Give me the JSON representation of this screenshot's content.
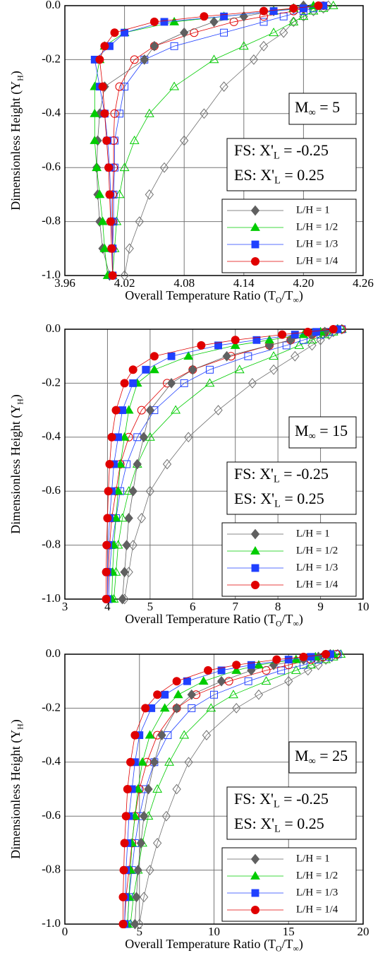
{
  "chart_data": [
    {
      "type": "line",
      "x_label": [
        "Overall Temperature Ratio (T",
        "O",
        "/T",
        "∞",
        ")"
      ],
      "y_label": [
        "Dimensionless Height (Y",
        "H",
        ")"
      ],
      "annotations": [
        [
          "M",
          "∞",
          " = 5"
        ],
        [
          "FS: X'",
          "L",
          " = -0.25"
        ],
        [
          "ES: X'",
          "L",
          " =  0.25"
        ]
      ],
      "xlim": [
        3.96,
        4.26
      ],
      "xticks": [
        3.96,
        4.02,
        4.08,
        4.14,
        {
          "value": 4.2,
          "label": "4.20"
        },
        4.26
      ],
      "ylim": [
        -1,
        0
      ],
      "yticks": [
        {
          "value": -1,
          "label": "-1.0"
        },
        -0.8,
        -0.6,
        -0.4,
        -0.2,
        {
          "value": 0,
          "label": "0.0"
        }
      ],
      "grid": true,
      "y": [
        0,
        -0.01,
        -0.02,
        -0.04,
        -0.06,
        -0.1,
        -0.15,
        -0.2,
        -0.3,
        -0.4,
        -0.5,
        -0.6,
        -0.7,
        -0.8,
        -0.9,
        -1.0
      ],
      "series": [
        {
          "color": "#707070",
          "marker": "diamond",
          "filled": false,
          "x": [
            4.225,
            4.22,
            4.21,
            4.2,
            4.19,
            4.18,
            4.16,
            4.15,
            4.12,
            4.1,
            4.08,
            4.06,
            4.045,
            4.035,
            4.025,
            4.02
          ]
        },
        {
          "color": "#00cc00",
          "marker": "triangle",
          "filled": false,
          "x": [
            4.23,
            4.22,
            4.21,
            4.2,
            4.19,
            4.17,
            4.14,
            4.11,
            4.07,
            4.045,
            4.03,
            4.02,
            4.015,
            4.012,
            4.01,
            4.008
          ]
        },
        {
          "color": "#2040ff",
          "marker": "square",
          "filled": false,
          "x": [
            4.22,
            4.21,
            4.2,
            4.18,
            4.16,
            4.12,
            4.07,
            4.04,
            4.02,
            4.015,
            4.01,
            4.01,
            4.009,
            4.009,
            4.008,
            4.008
          ]
        },
        {
          "color": "#e00000",
          "marker": "circle",
          "filled": false,
          "x": [
            4.22,
            4.2,
            4.19,
            4.16,
            4.13,
            4.09,
            4.05,
            4.03,
            4.015,
            4.01,
            4.009,
            4.009,
            4.008,
            4.008,
            4.008,
            4.008
          ]
        },
        {
          "name": "L/H = 1",
          "color": "#606060",
          "marker": "diamond",
          "filled": true,
          "x": [
            4.2,
            4.19,
            4.17,
            4.14,
            4.11,
            4.08,
            4.05,
            4.04,
            4.0,
            3.995,
            3.993,
            3.992,
            3.993,
            3.995,
            3.998,
            4.005
          ]
        },
        {
          "name": "L/H = 1/2",
          "color": "#00cc00",
          "marker": "triangle",
          "filled": true,
          "x": [
            4.21,
            4.19,
            4.17,
            4.12,
            4.07,
            4.02,
            4.0,
            3.995,
            3.99,
            3.99,
            3.99,
            3.992,
            3.995,
            3.998,
            4.0,
            4.003
          ]
        },
        {
          "name": "L/H = 1/3",
          "color": "#2040ff",
          "marker": "square",
          "filled": true,
          "x": [
            4.22,
            4.2,
            4.17,
            4.12,
            4.06,
            4.02,
            4.005,
            3.99,
            3.995,
            4.0,
            4.003,
            4.005,
            4.006,
            4.007,
            4.008,
            4.008
          ]
        },
        {
          "name": "L/H = 1/4",
          "color": "#e00000",
          "marker": "circle",
          "filled": true,
          "x": [
            4.215,
            4.19,
            4.16,
            4.1,
            4.05,
            4.01,
            4.0,
            3.995,
            3.998,
            4.0,
            4.002,
            4.004,
            4.005,
            4.006,
            4.007,
            4.008
          ]
        }
      ]
    },
    {
      "type": "line",
      "x_label": [
        "Overall Temperature Ratio (T",
        "O",
        "/T",
        "∞",
        ")"
      ],
      "y_label": [
        "Dimensionless Height (Y",
        "H",
        ")"
      ],
      "annotations": [
        [
          "M",
          "∞",
          " = 15"
        ],
        [
          "FS: X'",
          "L",
          " = -0.25"
        ],
        [
          "ES: X'",
          "L",
          " =  0.25"
        ]
      ],
      "xlim": [
        3,
        10
      ],
      "xticks": [
        3,
        4,
        5,
        6,
        7,
        8,
        9,
        10
      ],
      "ylim": [
        -1,
        0
      ],
      "yticks": [
        {
          "value": -1,
          "label": "-1.0"
        },
        -0.8,
        -0.6,
        -0.4,
        -0.2,
        {
          "value": 0,
          "label": "0.0"
        }
      ],
      "grid": true,
      "y": [
        0,
        -0.01,
        -0.02,
        -0.04,
        -0.06,
        -0.1,
        -0.15,
        -0.2,
        -0.3,
        -0.4,
        -0.5,
        -0.6,
        -0.7,
        -0.8,
        -0.9,
        -1.0
      ],
      "series": [
        {
          "color": "#707070",
          "marker": "diamond",
          "filled": false,
          "x": [
            9.5,
            9.3,
            9.2,
            9.0,
            8.8,
            8.4,
            7.9,
            7.4,
            6.6,
            5.9,
            5.4,
            5.0,
            4.8,
            4.6,
            4.5,
            4.4
          ]
        },
        {
          "color": "#00cc00",
          "marker": "triangle",
          "filled": false,
          "x": [
            9.5,
            9.3,
            9.1,
            8.8,
            8.5,
            7.9,
            7.1,
            6.4,
            5.6,
            5.0,
            4.7,
            4.5,
            4.35,
            4.25,
            4.2,
            4.15
          ]
        },
        {
          "color": "#2040ff",
          "marker": "square",
          "filled": false,
          "x": [
            9.5,
            9.2,
            9.0,
            8.6,
            8.2,
            7.3,
            6.4,
            5.8,
            5.1,
            4.7,
            4.45,
            4.3,
            4.2,
            4.1,
            4.05,
            4.03
          ]
        },
        {
          "color": "#e00000",
          "marker": "circle",
          "filled": false,
          "x": [
            9.5,
            9.1,
            8.8,
            8.3,
            7.8,
            6.9,
            6.0,
            5.4,
            4.8,
            4.5,
            4.3,
            4.2,
            4.1,
            4.05,
            4.02,
            4.0
          ]
        },
        {
          "name": "L/H = 1",
          "color": "#606060",
          "marker": "diamond",
          "filled": true,
          "x": [
            9.4,
            9.1,
            8.8,
            8.3,
            7.8,
            6.8,
            6.0,
            5.5,
            5.0,
            4.85,
            4.7,
            4.6,
            4.5,
            4.45,
            4.4,
            4.35
          ]
        },
        {
          "name": "L/H = 1/2",
          "color": "#00cc00",
          "marker": "triangle",
          "filled": true,
          "x": [
            9.4,
            9.0,
            8.6,
            7.8,
            7.0,
            5.9,
            5.1,
            4.7,
            4.5,
            4.4,
            4.3,
            4.25,
            4.2,
            4.15,
            4.12,
            4.1
          ]
        },
        {
          "name": "L/H = 1/3",
          "color": "#2040ff",
          "marker": "square",
          "filled": true,
          "x": [
            9.4,
            8.9,
            8.4,
            7.5,
            6.6,
            5.5,
            4.9,
            4.6,
            4.35,
            4.25,
            4.15,
            4.1,
            4.05,
            4.02,
            4.0,
            4.0
          ]
        },
        {
          "name": "L/H = 1/4",
          "color": "#e00000",
          "marker": "circle",
          "filled": true,
          "x": [
            9.3,
            8.7,
            8.1,
            7.0,
            6.2,
            5.1,
            4.6,
            4.4,
            4.2,
            4.1,
            4.05,
            4.02,
            4.0,
            3.98,
            3.97,
            3.97
          ]
        }
      ]
    },
    {
      "type": "line",
      "x_label": [
        "Overall Temperature Ratio (T",
        "O",
        "/T",
        "∞",
        ")"
      ],
      "y_label": [
        "Dimensionless Height (Y",
        "H",
        ")"
      ],
      "annotations": [
        [
          "M",
          "∞",
          " = 25"
        ],
        [
          "FS: X'",
          "L",
          " = -0.25"
        ],
        [
          "ES: X'",
          "L",
          " =  0.25"
        ]
      ],
      "xlim": [
        0,
        20
      ],
      "xticks": [
        0,
        5,
        10,
        15,
        20
      ],
      "ylim": [
        -1,
        0
      ],
      "yticks": [
        {
          "value": -1,
          "label": "-1.0"
        },
        -0.8,
        -0.6,
        -0.4,
        -0.2,
        {
          "value": 0,
          "label": "0.0"
        }
      ],
      "grid": true,
      "y": [
        0,
        -0.01,
        -0.02,
        -0.04,
        -0.06,
        -0.1,
        -0.15,
        -0.2,
        -0.3,
        -0.4,
        -0.5,
        -0.6,
        -0.7,
        -0.8,
        -0.9,
        -1.0
      ],
      "series": [
        {
          "color": "#707070",
          "marker": "diamond",
          "filled": false,
          "x": [
            18.3,
            17.9,
            17.5,
            17,
            16.3,
            15,
            13,
            11.5,
            9.5,
            8.3,
            7.5,
            6.8,
            6.2,
            5.7,
            5.3,
            5.0
          ]
        },
        {
          "color": "#00cc00",
          "marker": "triangle",
          "filled": false,
          "x": [
            18.5,
            18,
            17.5,
            16.5,
            15.5,
            13.5,
            11.3,
            9.8,
            8,
            7,
            6.2,
            5.6,
            5.2,
            4.9,
            4.6,
            4.4
          ]
        },
        {
          "color": "#2040ff",
          "marker": "square",
          "filled": false,
          "x": [
            18.3,
            17.7,
            17,
            16,
            14.5,
            12.3,
            10,
            8.5,
            6.9,
            6.0,
            5.4,
            5.0,
            4.7,
            4.5,
            4.3,
            4.2
          ]
        },
        {
          "color": "#e00000",
          "marker": "circle",
          "filled": false,
          "x": [
            18.2,
            17.3,
            16.5,
            15,
            13.5,
            11,
            8.8,
            7.5,
            6.2,
            5.5,
            5.0,
            4.7,
            4.5,
            4.3,
            4.1,
            4.0
          ]
        },
        {
          "name": "L/H = 1",
          "color": "#606060",
          "marker": "diamond",
          "filled": true,
          "x": [
            17.8,
            17,
            16,
            14,
            12.5,
            10.5,
            8.5,
            7.5,
            6.5,
            6.0,
            5.6,
            5.3,
            5.1,
            4.9,
            4.8,
            4.7
          ]
        },
        {
          "name": "L/H = 1/2",
          "color": "#00cc00",
          "marker": "triangle",
          "filled": true,
          "x": [
            18,
            16.8,
            15.5,
            13,
            11.5,
            9.3,
            7.6,
            6.7,
            5.7,
            5.2,
            4.9,
            4.7,
            4.5,
            4.4,
            4.3,
            4.2
          ]
        },
        {
          "name": "L/H = 1/3",
          "color": "#2040ff",
          "marker": "square",
          "filled": true,
          "x": [
            17.8,
            16.5,
            15,
            12.5,
            10.5,
            8.2,
            6.7,
            5.8,
            5.0,
            4.7,
            4.5,
            4.3,
            4.2,
            4.1,
            4.05,
            4.0
          ]
        },
        {
          "name": "L/H = 1/4",
          "color": "#e00000",
          "marker": "circle",
          "filled": true,
          "x": [
            17.5,
            16,
            14.2,
            11.5,
            9.6,
            7.5,
            6.2,
            5.4,
            4.7,
            4.4,
            4.2,
            4.1,
            4.0,
            3.95,
            3.9,
            3.9
          ]
        }
      ]
    }
  ]
}
